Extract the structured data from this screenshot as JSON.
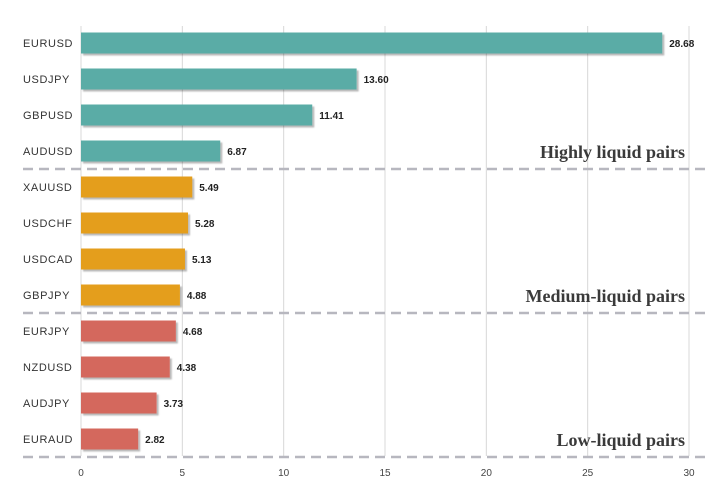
{
  "chart_data": {
    "type": "bar",
    "orientation": "horizontal",
    "title": "",
    "xlabel": "",
    "ylabel": "",
    "xlim": [
      0,
      30
    ],
    "ticks": [
      0,
      5,
      10,
      15,
      20,
      25,
      30
    ],
    "grid": true,
    "categories": [
      "EURUSD",
      "USDJPY",
      "GBPUSD",
      "AUDUSD",
      "XAUUSD",
      "USDCHF",
      "USDCAD",
      "GBPJPY",
      "EURJPY",
      "NZDUSD",
      "AUDJPY",
      "EURAUD"
    ],
    "values": [
      28.68,
      13.6,
      11.41,
      6.87,
      5.49,
      5.28,
      5.13,
      4.88,
      4.68,
      4.38,
      3.73,
      2.82
    ],
    "value_labels": [
      "28.68",
      "13.60",
      "11.41",
      "6.87",
      "5.49",
      "5.28",
      "5.13",
      "4.88",
      "4.68",
      "4.38",
      "3.73",
      "2.82"
    ],
    "groups": [
      {
        "name": "Highly liquid pairs",
        "start": 0,
        "end": 3,
        "color": "#5aaca6"
      },
      {
        "name": "Medium-liquid pairs",
        "start": 4,
        "end": 7,
        "color": "#e49e1c"
      },
      {
        "name": "Low-liquid pairs",
        "start": 8,
        "end": 11,
        "color": "#d4675d"
      }
    ]
  }
}
